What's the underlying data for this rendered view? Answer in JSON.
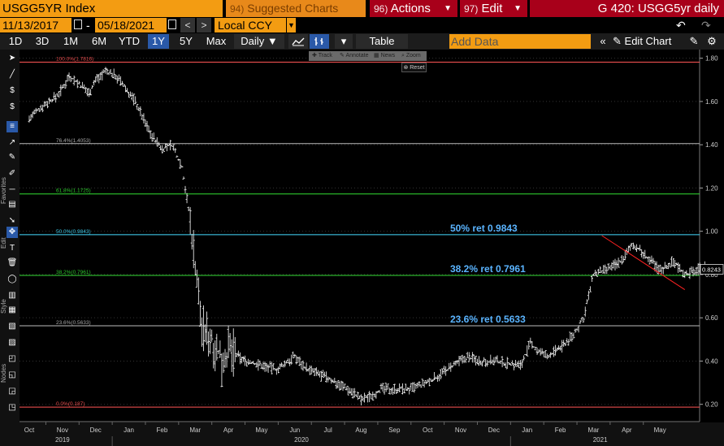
{
  "header": {
    "ticker": "USGG5YR Index",
    "suggested": {
      "num": "94)",
      "label": "Suggested Charts"
    },
    "actions": {
      "num": "96)",
      "label": "Actions"
    },
    "edit": {
      "num": "97)",
      "label": "Edit"
    },
    "title": "G 420: USGG5yr daily"
  },
  "dates": {
    "start": "11/13/2017",
    "end": "05/18/2021",
    "dash": "-"
  },
  "currency": "Local CCY",
  "periods": [
    "1D",
    "3D",
    "1M",
    "6M",
    "YTD",
    "1Y",
    "5Y",
    "Max"
  ],
  "active_period": "1Y",
  "frequency": "Daily",
  "table_label": "Table",
  "add_data_placeholder": "Add Data",
  "edit_chart_label": "Edit Chart",
  "zoom_tools": [
    "Track",
    "Annotate",
    "News",
    "Zoom"
  ],
  "reset_label": "Reset",
  "left_labels": {
    "favorites": "Favorites",
    "edit": "Edit",
    "style": "Style",
    "nodes": "Nodes"
  },
  "chart_data": {
    "type": "line",
    "style": "ohlc-bars",
    "title": "",
    "x_months": [
      "Oct",
      "Nov",
      "Dec",
      "Jan",
      "Feb",
      "Mar",
      "Apr",
      "May",
      "Jun",
      "Jul",
      "Aug",
      "Sep",
      "Oct",
      "Nov",
      "Dec",
      "Jan",
      "Feb",
      "Mar",
      "Apr",
      "May"
    ],
    "year_labels": [
      "2019",
      "2020",
      "2021"
    ],
    "ylim": [
      0.12,
      1.84
    ],
    "y_ticks": [
      "1.80",
      "1.60",
      "1.40",
      "1.20",
      "1.00",
      "0.80",
      "0.60",
      "0.40",
      "0.20"
    ],
    "last_value": "0.8243",
    "fib_levels": [
      {
        "label": "100.0%(1.7816)",
        "value": 1.7816,
        "color": "#ff5555"
      },
      {
        "label": "76.4%(1.4053)",
        "value": 1.4053,
        "color": "#bbbbbb"
      },
      {
        "label": "61.8%(1.1725)",
        "value": 1.1725,
        "color": "#33dd33"
      },
      {
        "label": "50.0%(0.9843)",
        "value": 0.9843,
        "color": "#44ddff"
      },
      {
        "label": "38.2%(0.7961)",
        "value": 0.7961,
        "color": "#33dd33"
      },
      {
        "label": "23.6%(0.5633)",
        "value": 0.5633,
        "color": "#bbbbbb"
      },
      {
        "label": "0.0%(0.187)",
        "value": 0.187,
        "color": "#ff5555"
      }
    ],
    "annotations": [
      {
        "text": "50% ret 0.9843",
        "value": 0.9843
      },
      {
        "text": "38.2% ret 0.7961",
        "value": 0.7961
      },
      {
        "text": "23.6% ret 0.5633",
        "value": 0.5633
      }
    ],
    "trendline": {
      "x": [
        17.25,
        19.75
      ],
      "y": [
        0.98,
        0.73
      ],
      "color": "#ff2222"
    },
    "price_anchors": [
      [
        0.0,
        1.52
      ],
      [
        0.4,
        1.58
      ],
      [
        0.8,
        1.62
      ],
      [
        1.0,
        1.66
      ],
      [
        1.2,
        1.72
      ],
      [
        1.5,
        1.68
      ],
      [
        1.8,
        1.64
      ],
      [
        2.0,
        1.7
      ],
      [
        2.3,
        1.74
      ],
      [
        2.6,
        1.72
      ],
      [
        2.9,
        1.66
      ],
      [
        3.2,
        1.6
      ],
      [
        3.5,
        1.5
      ],
      [
        3.7,
        1.44
      ],
      [
        4.0,
        1.38
      ],
      [
        4.3,
        1.4
      ],
      [
        4.6,
        1.3
      ],
      [
        4.8,
        1.1
      ],
      [
        5.0,
        0.85
      ],
      [
        5.2,
        0.55
      ],
      [
        5.5,
        0.5
      ],
      [
        5.8,
        0.4
      ],
      [
        6.0,
        0.45
      ],
      [
        6.5,
        0.4
      ],
      [
        7.0,
        0.38
      ],
      [
        7.5,
        0.36
      ],
      [
        7.8,
        0.4
      ],
      [
        8.0,
        0.42
      ],
      [
        8.4,
        0.36
      ],
      [
        9.0,
        0.32
      ],
      [
        9.5,
        0.28
      ],
      [
        9.8,
        0.25
      ],
      [
        10.0,
        0.22
      ],
      [
        10.3,
        0.24
      ],
      [
        10.6,
        0.27
      ],
      [
        11.0,
        0.27
      ],
      [
        11.5,
        0.27
      ],
      [
        12.0,
        0.3
      ],
      [
        12.4,
        0.34
      ],
      [
        12.8,
        0.38
      ],
      [
        13.2,
        0.42
      ],
      [
        13.6,
        0.4
      ],
      [
        14.0,
        0.4
      ],
      [
        14.4,
        0.39
      ],
      [
        14.8,
        0.38
      ],
      [
        15.1,
        0.48
      ],
      [
        15.3,
        0.45
      ],
      [
        15.6,
        0.42
      ],
      [
        16.0,
        0.46
      ],
      [
        16.4,
        0.52
      ],
      [
        16.7,
        0.6
      ],
      [
        17.0,
        0.8
      ],
      [
        17.4,
        0.82
      ],
      [
        17.8,
        0.86
      ],
      [
        18.2,
        0.94
      ],
      [
        18.6,
        0.88
      ],
      [
        19.0,
        0.82
      ],
      [
        19.4,
        0.86
      ],
      [
        19.8,
        0.8
      ],
      [
        20.4,
        0.84
      ]
    ],
    "grid": "horizontal-dotted"
  },
  "colors": {
    "orange": "#f39c12",
    "red_button": "#a8001a",
    "background": "#000000",
    "active_blue": "#2a59a8"
  }
}
